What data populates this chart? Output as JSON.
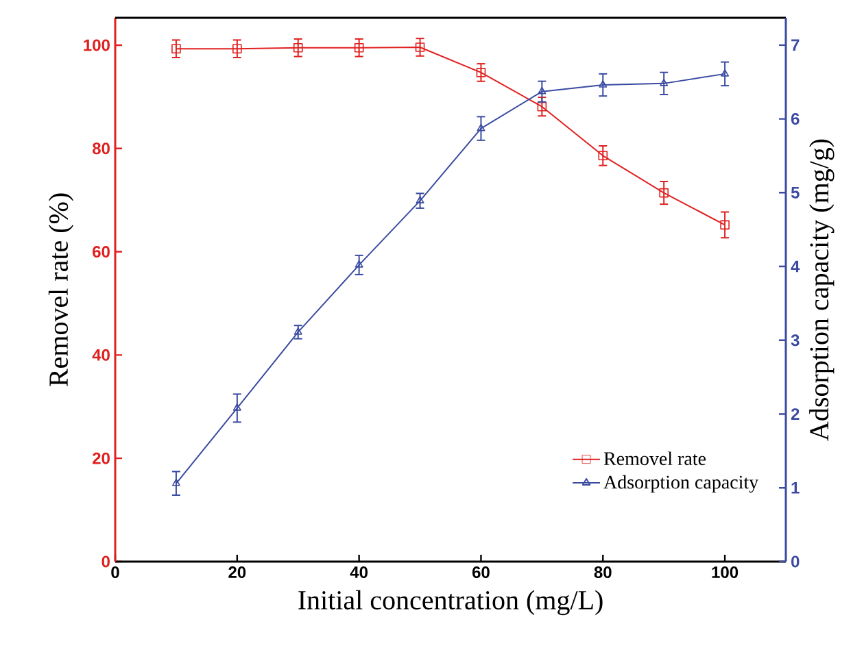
{
  "chart_data": {
    "type": "line",
    "x": [
      10,
      20,
      30,
      40,
      50,
      60,
      70,
      80,
      90,
      100
    ],
    "xlim": [
      0,
      110
    ],
    "xticks": [
      0,
      20,
      40,
      60,
      80,
      100
    ],
    "ylim": [
      0,
      105.3
    ],
    "yticks": [
      0,
      20,
      40,
      60,
      80,
      100
    ],
    "y2lim": [
      0,
      7.37
    ],
    "y2ticks": [
      0,
      1,
      2,
      3,
      4,
      5,
      6,
      7
    ],
    "xlabel": "Initial concentration (mg/L)",
    "ylabel": "Removel rate (%)",
    "y2label": "Adsorption capacity (mg/g)",
    "legend": "bottom right",
    "series": [
      {
        "name": "Removel rate",
        "color": "#e0201f",
        "marker": "square",
        "values": [
          99.3,
          99.3,
          99.5,
          99.5,
          99.6,
          94.7,
          88.1,
          78.6,
          71.4,
          65.2
        ],
        "errors": [
          1.7,
          1.7,
          1.7,
          1.7,
          1.7,
          1.7,
          1.8,
          1.9,
          2.2,
          2.5
        ]
      },
      {
        "name": "Adsorption capacity",
        "color": "#3a4ba0",
        "marker": "triangle",
        "axis": "y2",
        "values": [
          1.06,
          2.08,
          3.11,
          4.02,
          4.89,
          5.87,
          6.37,
          6.46,
          6.48,
          6.61
        ],
        "errors": [
          0.16,
          0.19,
          0.09,
          0.13,
          0.1,
          0.16,
          0.14,
          0.15,
          0.15,
          0.16
        ]
      }
    ]
  }
}
